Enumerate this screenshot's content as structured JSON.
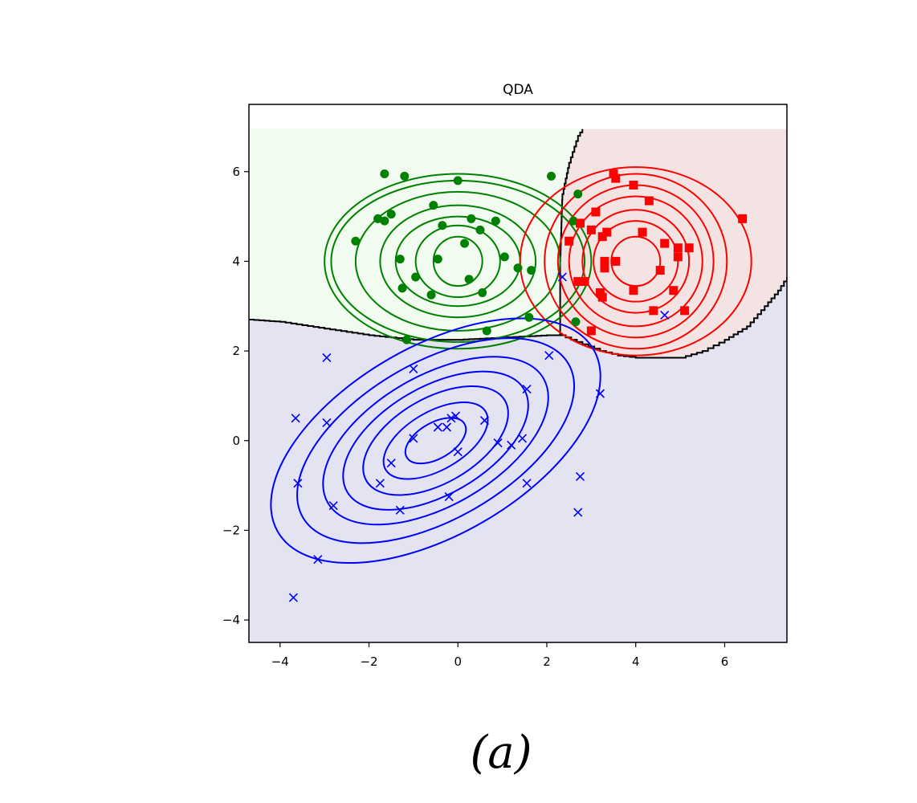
{
  "chart_data": {
    "type": "scatter",
    "title": "QDA",
    "caption": "(a)",
    "xlabel": "",
    "ylabel": "",
    "xlim": [
      -4.7,
      7.4
    ],
    "ylim": [
      -4.5,
      7.5
    ],
    "x_ticks": [
      -4,
      -2,
      0,
      2,
      4,
      6
    ],
    "y_ticks": [
      -4,
      -2,
      0,
      2,
      4,
      6
    ],
    "x_tick_labels": [
      "−4",
      "−2",
      "0",
      "2",
      "4",
      "6"
    ],
    "y_tick_labels": [
      "−4",
      "−2",
      "0",
      "2",
      "4",
      "6"
    ],
    "grid": false,
    "decision_region_top": 6.95,
    "series": [
      {
        "marker": "circle",
        "color": "#008000",
        "region_color": "#f1fbef",
        "points": [
          [
            -1.65,
            5.95
          ],
          [
            -1.2,
            5.9
          ],
          [
            0.0,
            5.8
          ],
          [
            2.1,
            5.9
          ],
          [
            2.7,
            5.5
          ],
          [
            -1.8,
            4.95
          ],
          [
            -1.5,
            5.05
          ],
          [
            -1.65,
            4.9
          ],
          [
            -0.55,
            5.25
          ],
          [
            -2.3,
            4.45
          ],
          [
            0.3,
            4.95
          ],
          [
            0.85,
            4.9
          ],
          [
            0.5,
            4.7
          ],
          [
            -0.35,
            4.8
          ],
          [
            0.15,
            4.4
          ],
          [
            -1.3,
            4.05
          ],
          [
            1.05,
            4.1
          ],
          [
            -0.45,
            4.05
          ],
          [
            1.35,
            3.85
          ],
          [
            1.65,
            3.8
          ],
          [
            -0.95,
            3.65
          ],
          [
            0.25,
            3.6
          ],
          [
            -1.25,
            3.4
          ],
          [
            0.55,
            3.3
          ],
          [
            -0.6,
            3.25
          ],
          [
            2.6,
            4.9
          ],
          [
            1.6,
            2.75
          ],
          [
            2.65,
            2.65
          ],
          [
            0.65,
            2.45
          ],
          [
            -1.15,
            2.25
          ]
        ],
        "contours": {
          "center": [
            0,
            4
          ],
          "rx": [
            0.55,
            0.95,
            1.4,
            1.75,
            2.3,
            2.85,
            3.0
          ],
          "ry": [
            0.55,
            0.8,
            1.0,
            1.25,
            1.55,
            1.8,
            1.95
          ],
          "angle": 0
        }
      },
      {
        "marker": "square",
        "color": "#ff0000",
        "region_color": "#f3e3e3",
        "points": [
          [
            3.5,
            5.95
          ],
          [
            3.55,
            5.85
          ],
          [
            3.95,
            5.7
          ],
          [
            4.3,
            5.35
          ],
          [
            6.4,
            4.95
          ],
          [
            3.1,
            5.1
          ],
          [
            2.75,
            4.85
          ],
          [
            3.0,
            4.7
          ],
          [
            3.25,
            4.55
          ],
          [
            3.35,
            4.65
          ],
          [
            4.15,
            4.65
          ],
          [
            2.5,
            4.45
          ],
          [
            4.65,
            4.4
          ],
          [
            4.95,
            4.3
          ],
          [
            5.2,
            4.3
          ],
          [
            4.95,
            4.1
          ],
          [
            3.3,
            4.0
          ],
          [
            3.55,
            4.0
          ],
          [
            3.3,
            3.85
          ],
          [
            4.55,
            3.8
          ],
          [
            2.85,
            3.55
          ],
          [
            2.7,
            3.55
          ],
          [
            3.95,
            3.35
          ],
          [
            4.85,
            3.35
          ],
          [
            3.2,
            3.3
          ],
          [
            3.25,
            3.2
          ],
          [
            4.4,
            2.9
          ],
          [
            5.1,
            2.9
          ],
          [
            3.0,
            2.45
          ]
        ],
        "contours": {
          "center": [
            4,
            4
          ],
          "rx": [
            0.55,
            0.95,
            1.2,
            1.5,
            1.75,
            2.05,
            2.6
          ],
          "ry": [
            0.55,
            0.9,
            1.15,
            1.45,
            1.7,
            1.95,
            2.1
          ],
          "angle": 0
        }
      },
      {
        "marker": "x",
        "color": "#0000ff",
        "region_color": "#e3e3f1",
        "points": [
          [
            -2.95,
            1.85
          ],
          [
            -1.0,
            1.6
          ],
          [
            2.05,
            1.9
          ],
          [
            1.55,
            1.15
          ],
          [
            3.2,
            1.05
          ],
          [
            -3.65,
            0.5
          ],
          [
            -2.95,
            0.4
          ],
          [
            -0.05,
            0.55
          ],
          [
            -0.15,
            0.5
          ],
          [
            0.6,
            0.45
          ],
          [
            -0.45,
            0.3
          ],
          [
            -0.25,
            0.3
          ],
          [
            1.45,
            0.05
          ],
          [
            -1.0,
            0.05
          ],
          [
            0.9,
            -0.05
          ],
          [
            1.2,
            -0.1
          ],
          [
            0.0,
            -0.25
          ],
          [
            -1.5,
            -0.5
          ],
          [
            -1.75,
            -0.95
          ],
          [
            1.55,
            -0.95
          ],
          [
            2.75,
            -0.8
          ],
          [
            -3.6,
            -0.95
          ],
          [
            -0.2,
            -1.25
          ],
          [
            -2.8,
            -1.45
          ],
          [
            -1.3,
            -1.55
          ],
          [
            2.7,
            -1.6
          ],
          [
            -3.15,
            -2.65
          ],
          [
            -3.7,
            -3.5
          ],
          [
            2.35,
            3.65
          ],
          [
            4.65,
            2.8
          ]
        ],
        "contours": {
          "center": [
            -0.5,
            0
          ],
          "rx": [
            0.75,
            1.3,
            1.8,
            2.3,
            2.8,
            3.45,
            4.1
          ],
          "ry": [
            0.4,
            0.65,
            0.95,
            1.2,
            1.45,
            1.75,
            2.1
          ],
          "angle": 30
        }
      }
    ],
    "boundary_blue_top": [
      [
        -4.7,
        2.7
      ],
      [
        -4.0,
        2.65
      ],
      [
        -3.0,
        2.5
      ],
      [
        -2.0,
        2.35
      ],
      [
        -1.0,
        2.25
      ],
      [
        0.0,
        2.25
      ],
      [
        1.0,
        2.3
      ],
      [
        2.0,
        2.35
      ],
      [
        2.3,
        2.35
      ]
    ],
    "boundary_green_red": [
      [
        2.3,
        2.35
      ],
      [
        2.3,
        4.0
      ],
      [
        2.35,
        5.5
      ],
      [
        2.5,
        6.2
      ],
      [
        2.7,
        6.8
      ],
      [
        2.8,
        6.95
      ]
    ],
    "boundary_red_blue": [
      [
        2.3,
        2.35
      ],
      [
        2.8,
        2.15
      ],
      [
        3.2,
        2.0
      ],
      [
        3.6,
        1.9
      ],
      [
        4.0,
        1.85
      ],
      [
        5.0,
        1.85
      ],
      [
        5.5,
        2.0
      ],
      [
        6.0,
        2.25
      ],
      [
        6.5,
        2.55
      ],
      [
        6.9,
        3.0
      ],
      [
        7.2,
        3.35
      ],
      [
        7.4,
        3.65
      ]
    ]
  }
}
